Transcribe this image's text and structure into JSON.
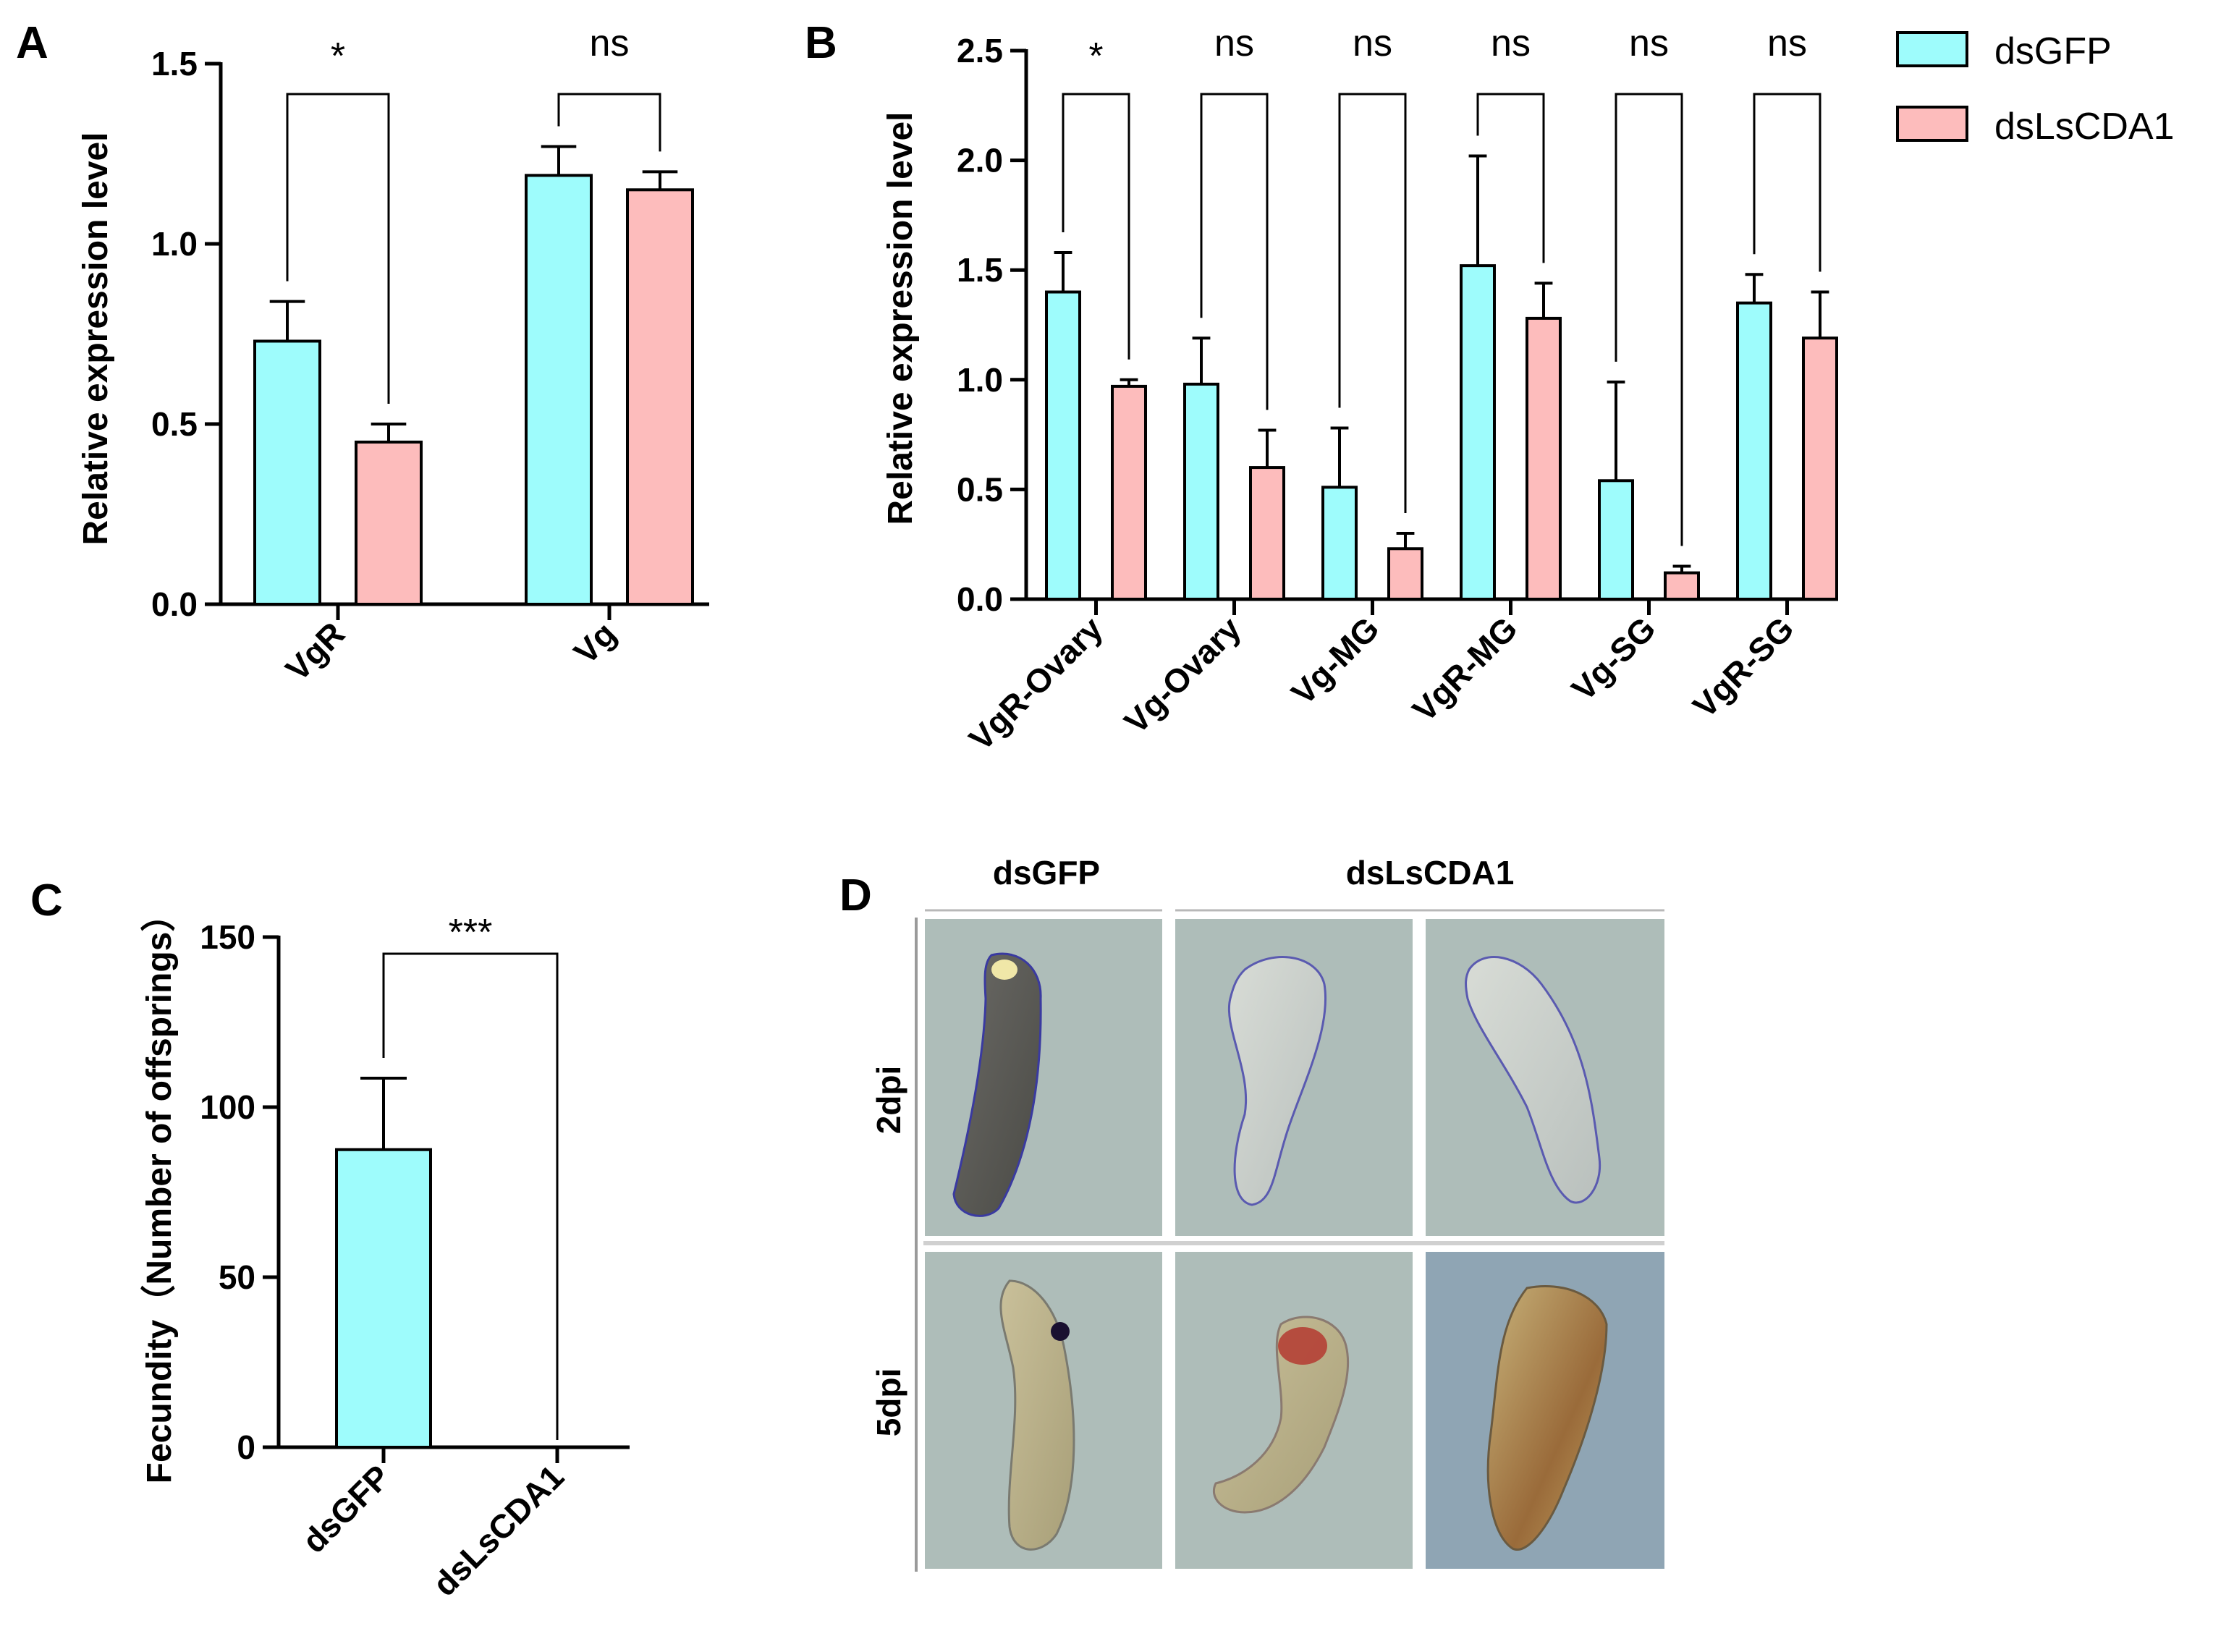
{
  "colors": {
    "dsGFP": "#9efcfc",
    "dsLsCDA1": "#fdbcbc",
    "stroke": "#000000",
    "photo_bg": "#aebeba",
    "photo_bg_blue": "#8fa5b4"
  },
  "legend": {
    "items": [
      {
        "label": "dsGFP",
        "color": "#9efcfc"
      },
      {
        "label": "dsLsCDA1",
        "color": "#fdbcbc"
      }
    ]
  },
  "chart_data": [
    {
      "panel": "A",
      "type": "bar",
      "ylabel": "Relative expression level",
      "ylim": [
        0,
        1.5
      ],
      "yticks": [
        0.0,
        0.5,
        1.0,
        1.5
      ],
      "ytick_labels": [
        "0.0",
        "0.5",
        "1.0",
        "1.5"
      ],
      "categories": [
        "VgR",
        "Vg"
      ],
      "series": [
        {
          "name": "dsGFP",
          "values": [
            0.73,
            1.19
          ],
          "errors": [
            0.11,
            0.08
          ]
        },
        {
          "name": "dsLsCDA1",
          "values": [
            0.45,
            1.15
          ],
          "errors": [
            0.05,
            0.05
          ]
        }
      ],
      "significance": [
        "*",
        "ns"
      ]
    },
    {
      "panel": "B",
      "type": "bar",
      "ylabel": "Relative expression level",
      "ylim": [
        0,
        2.5
      ],
      "yticks": [
        0.0,
        0.5,
        1.0,
        1.5,
        2.0,
        2.5
      ],
      "ytick_labels": [
        "0.0",
        "0.5",
        "1.0",
        "1.5",
        "2.0",
        "2.5"
      ],
      "categories": [
        "VgR-Ovary",
        "Vg-Ovary",
        "Vg-MG",
        "VgR-MG",
        "Vg-SG",
        "VgR-SG"
      ],
      "series": [
        {
          "name": "dsGFP",
          "values": [
            1.4,
            0.98,
            0.51,
            1.52,
            0.54,
            1.35
          ],
          "errors": [
            0.18,
            0.21,
            0.27,
            0.5,
            0.45,
            0.13
          ]
        },
        {
          "name": "dsLsCDA1",
          "values": [
            0.97,
            0.6,
            0.23,
            1.28,
            0.12,
            1.19
          ],
          "errors": [
            0.03,
            0.17,
            0.07,
            0.16,
            0.03,
            0.21
          ]
        }
      ],
      "significance": [
        "*",
        "ns",
        "ns",
        "ns",
        "ns",
        "ns"
      ]
    },
    {
      "panel": "C",
      "type": "bar",
      "ylabel": "Fecundity（Number of offsprings）",
      "ylim": [
        0,
        150
      ],
      "yticks": [
        0,
        50,
        100,
        150
      ],
      "ytick_labels": [
        "0",
        "50",
        "100",
        "150"
      ],
      "categories": [
        "dsGFP",
        "dsLsCDA1"
      ],
      "values": [
        87.5,
        0
      ],
      "errors": [
        21,
        0
      ],
      "significance": [
        "***"
      ]
    }
  ],
  "panel_d": {
    "letter": "D",
    "column_headers": [
      "dsGFP",
      "dsLsCDA1"
    ],
    "row_labels": [
      "2dpi",
      "5dpi"
    ]
  }
}
